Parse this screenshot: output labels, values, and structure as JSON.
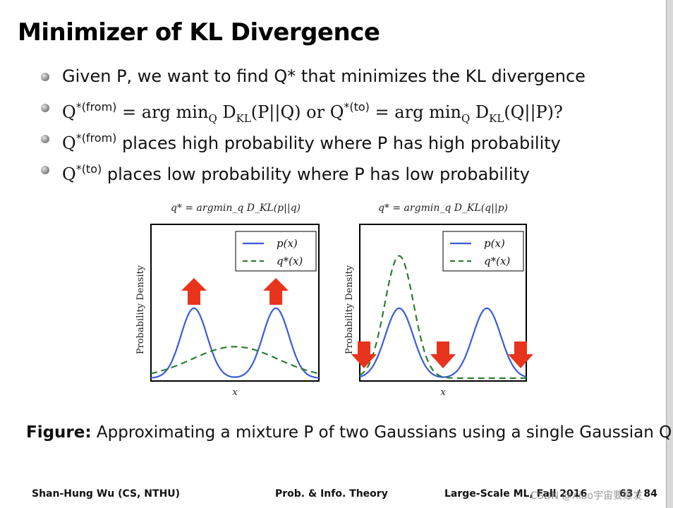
{
  "slide": {
    "title": "Minimizer of KL Divergence",
    "bullets": [
      {
        "text": "Given P, we want to find Q* that minimizes the KL divergence"
      },
      {
        "pre": "Q",
        "sup": "*(from)",
        "mid": " = arg min",
        "sub": "Q",
        "mid2": " D",
        "sub2": "KL",
        "post": "(P||Q) or Q",
        "sup2": "*(to)",
        "mid3": " = arg min",
        "sub3": "Q",
        "mid4": " D",
        "sub4": "KL",
        "post2": "(Q||P)?"
      },
      {
        "pre": "Q",
        "sup": "*(from)",
        "text": " places high probability where P has high probability"
      },
      {
        "pre": "Q",
        "sup": "*(to)",
        "text": " places low probability where P has low probability"
      }
    ],
    "caption_label": "Figure:",
    "caption_text": " Approximating a mixture P of two Gaussians using a single Gaussian Q.",
    "footer": {
      "author": "Shan-Hung Wu (CS, NTHU)",
      "section": "Prob. & Info. Theory",
      "course": "Large-Scale ML, Fall 2016",
      "page": "63 / 84",
      "watermark": "CSDN @Xiao宇宙要爆发"
    }
  },
  "chart_data": [
    {
      "type": "line",
      "title": "q* = argmin_q D_KL(p||q)",
      "xlabel": "x",
      "ylabel": "Probability Density",
      "legend": "top-right",
      "series": [
        {
          "name": "p(x)",
          "color": "#3b5bdb",
          "style": "solid",
          "components": [
            {
              "mu": -1.0,
              "sigma": 0.32,
              "weight": 0.5
            },
            {
              "mu": 1.0,
              "sigma": 0.32,
              "weight": 0.5
            }
          ]
        },
        {
          "name": "q*(x)",
          "color": "#2e7d32",
          "style": "dashed",
          "components": [
            {
              "mu": 0.0,
              "sigma": 1.05,
              "weight": 1.0
            }
          ]
        }
      ],
      "xlim": [
        -2.05,
        2.05
      ],
      "ylim": [
        0,
        1.1
      ],
      "arrows": {
        "direction": "up",
        "color": "#e8341c",
        "at_x": [
          -1.0,
          1.0
        ]
      }
    },
    {
      "type": "line",
      "title": "q* = argmin_q D_KL(q||p)",
      "xlabel": "x",
      "ylabel": "Probability Density",
      "legend": "top-right",
      "series": [
        {
          "name": "p(x)",
          "color": "#3b5bdb",
          "style": "solid",
          "components": [
            {
              "mu": -1.0,
              "sigma": 0.32,
              "weight": 0.5
            },
            {
              "mu": 1.0,
              "sigma": 0.32,
              "weight": 0.5
            }
          ]
        },
        {
          "name": "q*(x)",
          "color": "#2e7d32",
          "style": "dashed",
          "components": [
            {
              "mu": -1.0,
              "sigma": 0.33,
              "weight": 1.0
            }
          ]
        }
      ],
      "xlim": [
        -1.9,
        1.9
      ],
      "ylim": [
        0,
        1.3
      ],
      "arrows": {
        "direction": "down",
        "color": "#e8341c",
        "at_x": [
          -1.9,
          0.0,
          1.9
        ]
      }
    }
  ]
}
